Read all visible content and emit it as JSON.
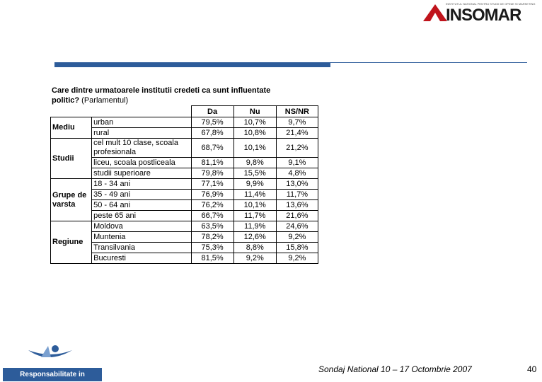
{
  "header": {
    "logo_caption": "INSTITUTUL NATIONAL PENTRU STUDII DE OPINIE SI MARKETING",
    "logo": "INSOMAR"
  },
  "question": {
    "bold": "Care dintre urmatoarele institutii credeti ca sunt influentate politic?",
    "normal": "(Parlamentul)"
  },
  "table": {
    "header": [
      "Da",
      "Nu",
      "NS/NR"
    ],
    "groups": [
      {
        "label": "Mediu",
        "rows": [
          [
            "urban",
            "79,5%",
            "10,7%",
            "9,7%"
          ],
          [
            "rural",
            "67,8%",
            "10,8%",
            "21,4%"
          ]
        ]
      },
      {
        "label": "Studii",
        "rows": [
          [
            "cel mult 10 clase, scoala profesionala",
            "68,7%",
            "10,1%",
            "21,2%"
          ],
          [
            "liceu, scoala postliceala",
            "81,1%",
            "9,8%",
            "9,1%"
          ],
          [
            "studii superioare",
            "79,8%",
            "15,5%",
            "4,8%"
          ]
        ]
      },
      {
        "label": "Grupe de varsta",
        "rows": [
          [
            "18 - 34 ani",
            "77,1%",
            "9,9%",
            "13,0%"
          ],
          [
            "35 - 49 ani",
            "76,9%",
            "11,4%",
            "11,7%"
          ],
          [
            "50 - 64 ani",
            "76,2%",
            "10,1%",
            "13,6%"
          ],
          [
            "peste 65 ani",
            "66,7%",
            "11,7%",
            "21,6%"
          ]
        ]
      },
      {
        "label": "Regiune",
        "rows": [
          [
            "Moldova",
            "63,5%",
            "11,9%",
            "24,6%"
          ],
          [
            "Muntenia",
            "78,2%",
            "12,6%",
            "9,2%"
          ],
          [
            "Transilvania",
            "75,3%",
            "8,8%",
            "15,8%"
          ],
          [
            "Bucuresti",
            "81,5%",
            "9,2%",
            "9,2%"
          ]
        ]
      }
    ]
  },
  "footer": {
    "org": "Responsabilitate in Democratie",
    "survey": "Sondaj National 10 – 17 Octombrie 2007",
    "page": "40"
  }
}
